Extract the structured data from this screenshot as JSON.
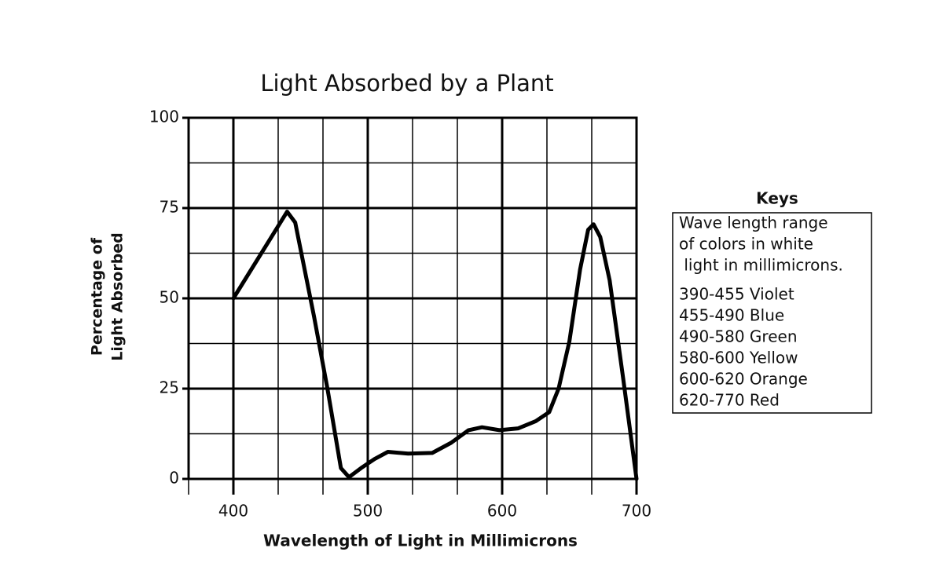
{
  "chart_data": {
    "type": "line",
    "title": "Light Absorbed by a Plant",
    "xlabel": "Wavelength of Light in Millimicrons",
    "ylabel": [
      "Percentage of",
      "Light Absorbed"
    ],
    "x": [
      400,
      440,
      446,
      460,
      470,
      480,
      486,
      495,
      505,
      515,
      530,
      548,
      562,
      575,
      585,
      598,
      612,
      625,
      635,
      642,
      650,
      658,
      664,
      668,
      673,
      680,
      690,
      700
    ],
    "series": [
      {
        "color": "#000000",
        "values": [
          50,
          74,
          71,
          45,
          25,
          3,
          0.5,
          3,
          5.5,
          7.5,
          7,
          7.2,
          10,
          13.5,
          14.3,
          13.5,
          14,
          16,
          18.5,
          25,
          38,
          58,
          69,
          70.5,
          67,
          55,
          28,
          0
        ]
      }
    ],
    "xlim": [
      366.67,
      700
    ],
    "xticks": [
      400,
      500,
      600,
      700
    ],
    "x_minor_grid": [
      366.67,
      433.33,
      466.67,
      533.33,
      566.67,
      633.33,
      666.67
    ],
    "ylim": [
      0,
      100
    ],
    "yticks": [
      0,
      25,
      50,
      75,
      100
    ],
    "y_minor_grid": [
      12.5,
      37.5,
      62.5,
      87.5
    ],
    "grid": true,
    "key_title": "Keys",
    "key_lines": [
      "Wave length range",
      "of colors in white",
      " light in millimicrons.",
      "390-455 Violet",
      "455-490 Blue",
      "490-580 Green",
      "580-600 Yellow",
      "600-620 Orange",
      "620-770 Red"
    ]
  }
}
